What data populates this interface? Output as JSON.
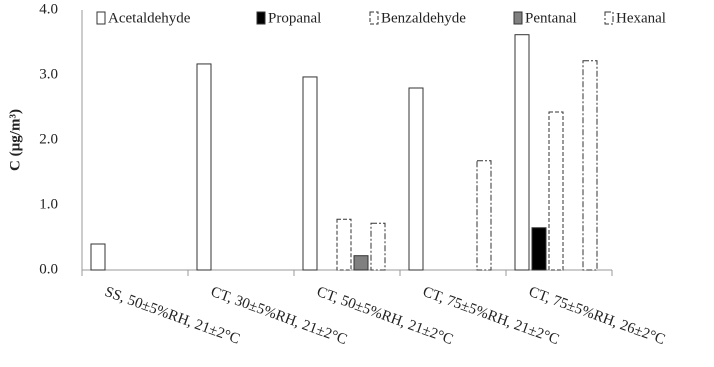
{
  "chart_data": {
    "type": "bar",
    "y_label": "C (µg/m³)",
    "categories": [
      "SS, 50±5%RH, 21±2°C",
      "CT, 30±5%RH, 21±2°C",
      "CT, 50±5%RH, 21±2°C",
      "CT, 75±5%RH, 21±2°C",
      "CT, 75±5%RH, 26±2°C"
    ],
    "series": [
      {
        "name": "Acetaldehyde",
        "color": "#ffffff",
        "values": [
          0.4,
          3.17,
          2.97,
          2.8,
          3.62
        ]
      },
      {
        "name": "Propanal",
        "color": "#000000",
        "values": [
          null,
          null,
          null,
          null,
          0.65
        ]
      },
      {
        "name": "Benzaldehyde",
        "color": "#ffffff",
        "values": [
          null,
          null,
          0.78,
          null,
          2.43
        ]
      },
      {
        "name": "Pentanal",
        "color": "#808080",
        "values": [
          null,
          null,
          0.22,
          null,
          null
        ]
      },
      {
        "name": "Hexanal",
        "color": "#ffffff",
        "values": [
          null,
          null,
          0.72,
          1.68,
          3.22
        ]
      }
    ],
    "ylim": [
      0,
      4
    ],
    "yticks": [
      {
        "value": 0,
        "label": "0.0"
      },
      {
        "value": 1,
        "label": "1.0"
      },
      {
        "value": 2,
        "label": "2.0"
      },
      {
        "value": 3,
        "label": "3.0"
      },
      {
        "value": 4,
        "label": "4.0"
      }
    ]
  }
}
